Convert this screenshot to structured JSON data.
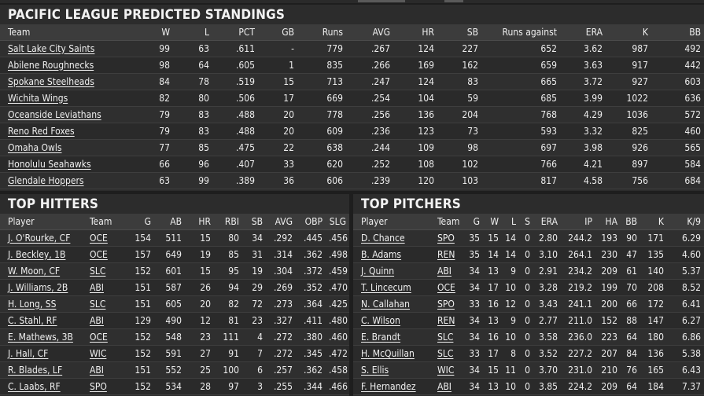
{
  "standings": {
    "title": "PACIFIC LEAGUE PREDICTED STANDINGS",
    "columns": [
      "Team",
      "W",
      "L",
      "PCT",
      "GB",
      "Runs",
      "AVG",
      "HR",
      "SB",
      "Runs against",
      "ERA",
      "K",
      "BB"
    ],
    "rows": [
      [
        "Salt Lake City Saints",
        "99",
        "63",
        ".611",
        "-",
        "779",
        ".267",
        "124",
        "227",
        "652",
        "3.62",
        "987",
        "492"
      ],
      [
        "Abilene Roughnecks",
        "98",
        "64",
        ".605",
        "1",
        "835",
        ".266",
        "169",
        "162",
        "659",
        "3.63",
        "917",
        "442"
      ],
      [
        "Spokane Steelheads",
        "84",
        "78",
        ".519",
        "15",
        "713",
        ".247",
        "124",
        "83",
        "665",
        "3.72",
        "927",
        "603"
      ],
      [
        "Wichita Wings",
        "82",
        "80",
        ".506",
        "17",
        "669",
        ".254",
        "104",
        "59",
        "685",
        "3.99",
        "1022",
        "636"
      ],
      [
        "Oceanside Leviathans",
        "79",
        "83",
        ".488",
        "20",
        "778",
        ".256",
        "136",
        "204",
        "768",
        "4.29",
        "1036",
        "572"
      ],
      [
        "Reno Red Foxes",
        "79",
        "83",
        ".488",
        "20",
        "609",
        ".236",
        "123",
        "73",
        "593",
        "3.32",
        "825",
        "460"
      ],
      [
        "Omaha Owls",
        "77",
        "85",
        ".475",
        "22",
        "638",
        ".244",
        "109",
        "98",
        "697",
        "3.98",
        "926",
        "565"
      ],
      [
        "Honolulu Seahawks",
        "66",
        "96",
        ".407",
        "33",
        "620",
        ".252",
        "108",
        "102",
        "766",
        "4.21",
        "897",
        "584"
      ],
      [
        "Glendale Hoppers",
        "63",
        "99",
        ".389",
        "36",
        "606",
        ".239",
        "120",
        "103",
        "817",
        "4.58",
        "756",
        "684"
      ]
    ]
  },
  "hitters": {
    "title": "TOP HITTERS",
    "columns": [
      "Player",
      "Team",
      "G",
      "AB",
      "HR",
      "RBI",
      "SB",
      "AVG",
      "OBP",
      "SLG"
    ],
    "rows": [
      [
        "J. O'Rourke, CF",
        "OCE",
        "154",
        "511",
        "15",
        "80",
        "34",
        ".292",
        ".445",
        ".456"
      ],
      [
        "J. Beckley, 1B",
        "OCE",
        "157",
        "649",
        "19",
        "85",
        "31",
        ".314",
        ".362",
        ".498"
      ],
      [
        "W. Moon, CF",
        "SLC",
        "152",
        "601",
        "15",
        "95",
        "19",
        ".304",
        ".372",
        ".459"
      ],
      [
        "J. Williams, 2B",
        "ABI",
        "151",
        "587",
        "26",
        "94",
        "29",
        ".269",
        ".352",
        ".470"
      ],
      [
        "H. Long, SS",
        "SLC",
        "151",
        "605",
        "20",
        "82",
        "72",
        ".273",
        ".364",
        ".425"
      ],
      [
        "C. Stahl, RF",
        "ABI",
        "129",
        "490",
        "12",
        "81",
        "23",
        ".327",
        ".411",
        ".480"
      ],
      [
        "E. Mathews, 3B",
        "OCE",
        "152",
        "548",
        "23",
        "111",
        "4",
        ".272",
        ".380",
        ".460"
      ],
      [
        "J. Hall, CF",
        "WIC",
        "152",
        "591",
        "27",
        "91",
        "7",
        ".272",
        ".345",
        ".472"
      ],
      [
        "R. Blades, LF",
        "ABI",
        "151",
        "552",
        "25",
        "100",
        "6",
        ".257",
        ".362",
        ".458"
      ],
      [
        "C. Laabs, RF",
        "SPO",
        "152",
        "534",
        "28",
        "97",
        "3",
        ".255",
        ".344",
        ".466"
      ]
    ]
  },
  "pitchers": {
    "title": "TOP PITCHERS",
    "columns": [
      "Player",
      "Team",
      "G",
      "W",
      "L",
      "S",
      "ERA",
      "IP",
      "HA",
      "BB",
      "K",
      "K/9"
    ],
    "rows": [
      [
        "D. Chance",
        "SPO",
        "35",
        "15",
        "14",
        "0",
        "2.80",
        "244.2",
        "193",
        "90",
        "171",
        "6.29"
      ],
      [
        "B. Adams",
        "REN",
        "35",
        "14",
        "14",
        "0",
        "3.10",
        "264.1",
        "230",
        "47",
        "135",
        "4.60"
      ],
      [
        "J. Quinn",
        "ABI",
        "34",
        "13",
        "9",
        "0",
        "2.91",
        "234.2",
        "209",
        "61",
        "140",
        "5.37"
      ],
      [
        "T. Lincecum",
        "OCE",
        "34",
        "17",
        "10",
        "0",
        "3.28",
        "219.2",
        "199",
        "70",
        "208",
        "8.52"
      ],
      [
        "N. Callahan",
        "SPO",
        "33",
        "16",
        "12",
        "0",
        "3.43",
        "241.1",
        "200",
        "66",
        "172",
        "6.41"
      ],
      [
        "C. Wilson",
        "REN",
        "34",
        "13",
        "9",
        "0",
        "2.77",
        "211.0",
        "152",
        "88",
        "147",
        "6.27"
      ],
      [
        "E. Brandt",
        "SLC",
        "34",
        "16",
        "10",
        "0",
        "3.58",
        "236.0",
        "223",
        "64",
        "180",
        "6.86"
      ],
      [
        "H. McQuillan",
        "SLC",
        "33",
        "17",
        "8",
        "0",
        "3.52",
        "227.2",
        "207",
        "84",
        "136",
        "5.38"
      ],
      [
        "S. Ellis",
        "WIC",
        "34",
        "15",
        "11",
        "0",
        "3.70",
        "231.0",
        "210",
        "76",
        "165",
        "6.43"
      ],
      [
        "F. Hernandez",
        "ABI",
        "34",
        "13",
        "10",
        "0",
        "3.85",
        "224.2",
        "209",
        "64",
        "184",
        "7.37"
      ]
    ]
  }
}
